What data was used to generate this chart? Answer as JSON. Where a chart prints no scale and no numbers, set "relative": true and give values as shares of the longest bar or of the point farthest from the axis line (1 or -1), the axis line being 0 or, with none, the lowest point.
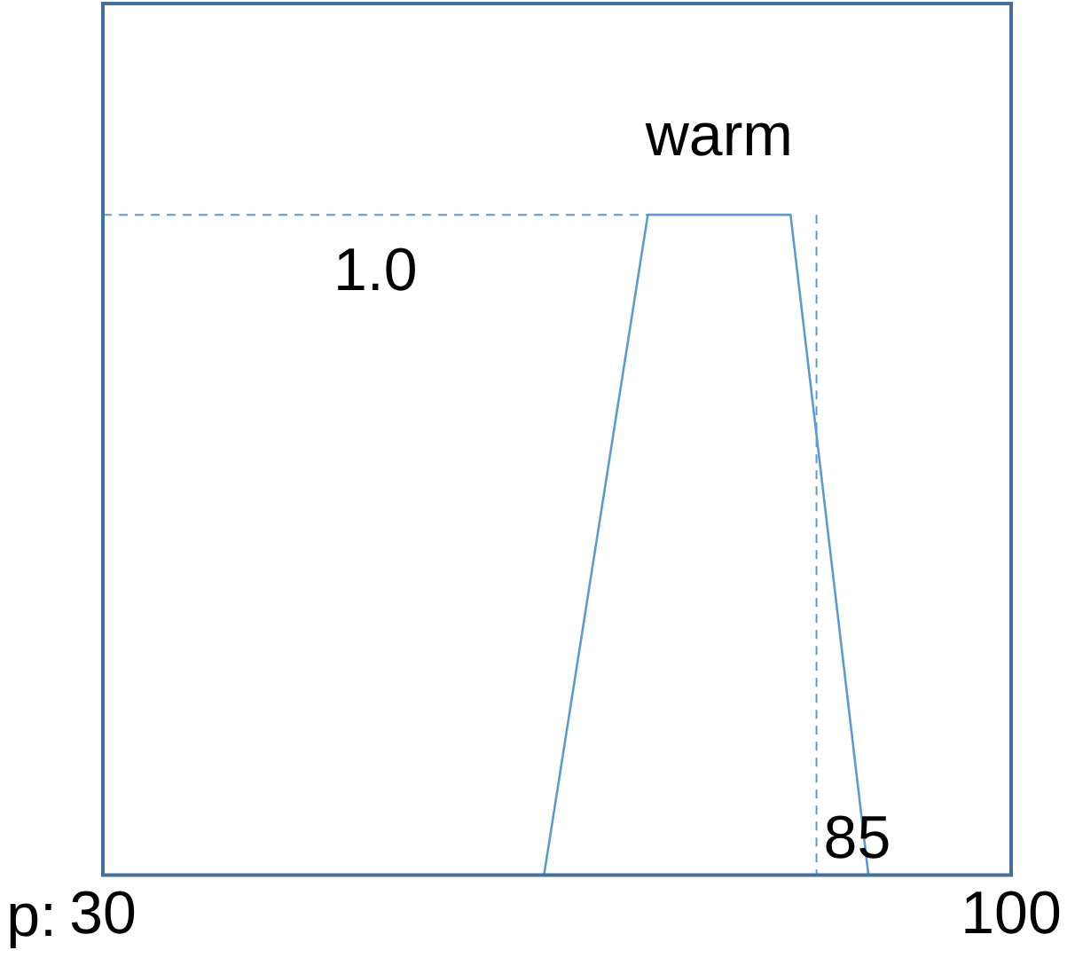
{
  "chart_data": {
    "type": "line",
    "xlabel": "p:",
    "relative": true,
    "x": [
      64,
      72,
      83,
      89
    ],
    "series": [
      {
        "name": "warm",
        "color": "#5b9bd5",
        "values": [
          0,
          1,
          1,
          0
        ]
      }
    ],
    "xlim": [
      30,
      100
    ],
    "xticks": [
      30,
      100
    ],
    "ref_lines": [
      {
        "axis": "y",
        "value": 1,
        "label": "1.0",
        "color": "#5b9bd5",
        "line_style": "dashed"
      },
      {
        "axis": "x",
        "value": 85,
        "label": "85",
        "color": "#5b9bd5",
        "line_style": "dashed"
      }
    ],
    "legend": false,
    "marker": "none",
    "line_style": "solid"
  }
}
